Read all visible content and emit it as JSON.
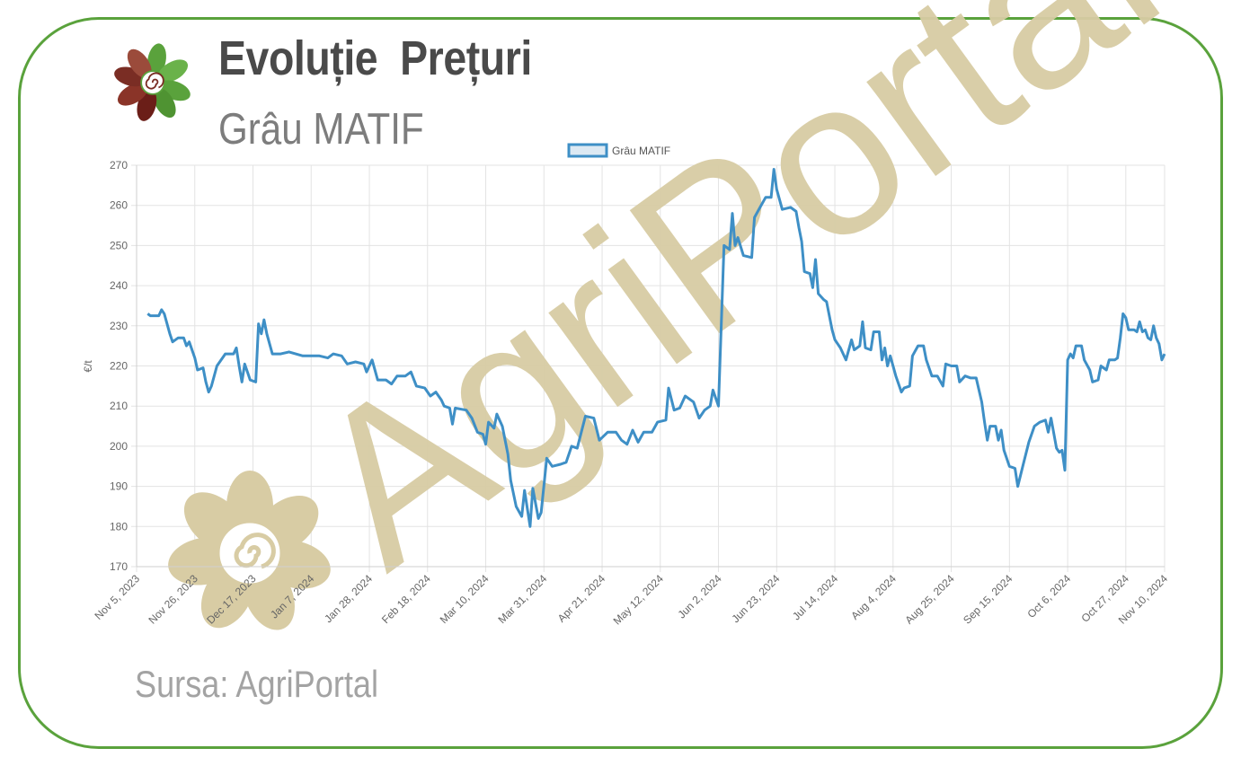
{
  "header": {
    "title": "Evoluție  Prețuri",
    "subtitle": "Grâu MATIF"
  },
  "footer": {
    "source": "Sursa: AgriPortal"
  },
  "watermark": {
    "text": "AgriPortal",
    "color": "#d8cca4"
  },
  "colors": {
    "frame": "#5aa23c",
    "line": "#3e8fc6",
    "grid": "#e3e3e3",
    "logo_green": "#5aa23c",
    "logo_brown": "#7a2d24"
  },
  "chart_data": {
    "type": "line",
    "title": "",
    "xlabel": "",
    "ylabel": "€/t",
    "ylim": [
      170,
      270
    ],
    "yticks": [
      170,
      180,
      190,
      200,
      210,
      220,
      230,
      240,
      250,
      260,
      270
    ],
    "xlim": [
      "2023-11-05",
      "2024-11-10"
    ],
    "xtick_labels": [
      "Nov 5, 2023",
      "Nov 26, 2023",
      "Dec 17, 2023",
      "Jan 7, 2024",
      "Jan 28, 2024",
      "Feb 18, 2024",
      "Mar 10, 2024",
      "Mar 31, 2024",
      "Apr 21, 2024",
      "May 12, 2024",
      "Jun 2, 2024",
      "Jun 23, 2024",
      "Jul 14, 2024",
      "Aug 4, 2024",
      "Aug 25, 2024",
      "Sep 15, 2024",
      "Oct 6, 2024",
      "Oct 27, 2024",
      "Nov 10, 2024"
    ],
    "grid": true,
    "legend": "top-center",
    "series": [
      {
        "name": "Grâu MATIF",
        "color": "#3e8fc6",
        "points": [
          [
            "2023-11-09",
            233
          ],
          [
            "2023-11-10",
            232.5
          ],
          [
            "2023-11-13",
            232.5
          ],
          [
            "2023-11-14",
            234
          ],
          [
            "2023-11-15",
            233
          ],
          [
            "2023-11-17",
            228
          ],
          [
            "2023-11-18",
            226
          ],
          [
            "2023-11-20",
            227
          ],
          [
            "2023-11-22",
            227
          ],
          [
            "2023-11-23",
            225
          ],
          [
            "2023-11-24",
            226
          ],
          [
            "2023-11-26",
            222
          ],
          [
            "2023-11-27",
            219
          ],
          [
            "2023-11-29",
            219.5
          ],
          [
            "2023-11-30",
            216
          ],
          [
            "2023-12-01",
            213.5
          ],
          [
            "2023-12-02",
            215
          ],
          [
            "2023-12-04",
            220
          ],
          [
            "2023-12-07",
            223
          ],
          [
            "2023-12-10",
            223
          ],
          [
            "2023-12-11",
            224.5
          ],
          [
            "2023-12-12",
            220
          ],
          [
            "2023-12-13",
            216
          ],
          [
            "2023-12-14",
            220.5
          ],
          [
            "2023-12-16",
            216.5
          ],
          [
            "2023-12-18",
            216
          ],
          [
            "2023-12-19",
            230.5
          ],
          [
            "2023-12-20",
            228
          ],
          [
            "2023-12-21",
            231.5
          ],
          [
            "2023-12-22",
            228
          ],
          [
            "2023-12-24",
            223
          ],
          [
            "2023-12-27",
            223
          ],
          [
            "2023-12-30",
            223.5
          ],
          [
            "2024-01-04",
            222.5
          ],
          [
            "2024-01-10",
            222.5
          ],
          [
            "2024-01-13",
            222
          ],
          [
            "2024-01-15",
            223
          ],
          [
            "2024-01-18",
            222.5
          ],
          [
            "2024-01-20",
            220.5
          ],
          [
            "2024-01-23",
            221
          ],
          [
            "2024-01-26",
            220.5
          ],
          [
            "2024-01-27",
            218.5
          ],
          [
            "2024-01-29",
            221.5
          ],
          [
            "2024-01-31",
            216.5
          ],
          [
            "2024-02-03",
            216.5
          ],
          [
            "2024-02-05",
            215.5
          ],
          [
            "2024-02-07",
            217.5
          ],
          [
            "2024-02-10",
            217.5
          ],
          [
            "2024-02-12",
            218.5
          ],
          [
            "2024-02-14",
            215
          ],
          [
            "2024-02-17",
            214.5
          ],
          [
            "2024-02-19",
            212.5
          ],
          [
            "2024-02-21",
            213.5
          ],
          [
            "2024-02-23",
            211.5
          ],
          [
            "2024-02-24",
            210
          ],
          [
            "2024-02-26",
            209.5
          ],
          [
            "2024-02-27",
            205.5
          ],
          [
            "2024-02-28",
            209.5
          ],
          [
            "2024-03-03",
            209
          ],
          [
            "2024-03-05",
            207
          ],
          [
            "2024-03-07",
            203.5
          ],
          [
            "2024-03-09",
            203
          ],
          [
            "2024-03-10",
            200.5
          ],
          [
            "2024-03-11",
            206
          ],
          [
            "2024-03-13",
            204.5
          ],
          [
            "2024-03-14",
            208
          ],
          [
            "2024-03-16",
            205
          ],
          [
            "2024-03-18",
            198
          ],
          [
            "2024-03-19",
            191.5
          ],
          [
            "2024-03-21",
            185
          ],
          [
            "2024-03-23",
            182.5
          ],
          [
            "2024-03-24",
            189
          ],
          [
            "2024-03-26",
            180
          ],
          [
            "2024-03-27",
            189.5
          ],
          [
            "2024-03-29",
            182
          ],
          [
            "2024-03-30",
            183.5
          ],
          [
            "2024-04-01",
            197
          ],
          [
            "2024-04-03",
            195
          ],
          [
            "2024-04-06",
            195.5
          ],
          [
            "2024-04-08",
            196
          ],
          [
            "2024-04-10",
            200
          ],
          [
            "2024-04-12",
            199.5
          ],
          [
            "2024-04-15",
            207.5
          ],
          [
            "2024-04-18",
            207
          ],
          [
            "2024-04-20",
            201.5
          ],
          [
            "2024-04-23",
            203.5
          ],
          [
            "2024-04-26",
            203.5
          ],
          [
            "2024-04-28",
            201.5
          ],
          [
            "2024-04-30",
            200.5
          ],
          [
            "2024-05-02",
            204
          ],
          [
            "2024-05-04",
            201
          ],
          [
            "2024-05-06",
            203.5
          ],
          [
            "2024-05-09",
            203.5
          ],
          [
            "2024-05-11",
            206
          ],
          [
            "2024-05-14",
            206.5
          ],
          [
            "2024-05-15",
            214.5
          ],
          [
            "2024-05-17",
            209
          ],
          [
            "2024-05-19",
            209.5
          ],
          [
            "2024-05-21",
            212.5
          ],
          [
            "2024-05-24",
            211
          ],
          [
            "2024-05-26",
            207
          ],
          [
            "2024-05-28",
            209
          ],
          [
            "2024-05-30",
            210
          ],
          [
            "2024-05-31",
            214
          ],
          [
            "2024-06-02",
            210
          ],
          [
            "2024-06-04",
            250
          ],
          [
            "2024-06-06",
            249
          ],
          [
            "2024-06-07",
            258
          ],
          [
            "2024-06-08",
            250
          ],
          [
            "2024-06-09",
            252
          ],
          [
            "2024-06-11",
            247.5
          ],
          [
            "2024-06-14",
            247
          ],
          [
            "2024-06-15",
            257
          ],
          [
            "2024-06-17",
            259.5
          ],
          [
            "2024-06-19",
            262
          ],
          [
            "2024-06-21",
            262
          ],
          [
            "2024-06-22",
            269
          ],
          [
            "2024-06-23",
            264
          ],
          [
            "2024-06-25",
            259
          ],
          [
            "2024-06-28",
            259.5
          ],
          [
            "2024-06-30",
            258.5
          ],
          [
            "2024-07-01",
            254.5
          ],
          [
            "2024-07-02",
            251
          ],
          [
            "2024-07-03",
            243.5
          ],
          [
            "2024-07-05",
            243
          ],
          [
            "2024-07-06",
            239.5
          ],
          [
            "2024-07-07",
            246.5
          ],
          [
            "2024-07-08",
            238
          ],
          [
            "2024-07-10",
            236.5
          ],
          [
            "2024-07-11",
            236
          ],
          [
            "2024-07-13",
            229
          ],
          [
            "2024-07-14",
            226.5
          ],
          [
            "2024-07-16",
            224.5
          ],
          [
            "2024-07-18",
            221.5
          ],
          [
            "2024-07-20",
            226.5
          ],
          [
            "2024-07-21",
            224
          ],
          [
            "2024-07-23",
            225
          ],
          [
            "2024-07-24",
            231
          ],
          [
            "2024-07-25",
            224.5
          ],
          [
            "2024-07-27",
            224
          ],
          [
            "2024-07-28",
            228.5
          ],
          [
            "2024-07-30",
            228.5
          ],
          [
            "2024-07-31",
            221.5
          ],
          [
            "2024-08-01",
            224.5
          ],
          [
            "2024-08-02",
            220
          ],
          [
            "2024-08-03",
            222.5
          ],
          [
            "2024-08-05",
            217.5
          ],
          [
            "2024-08-07",
            213.5
          ],
          [
            "2024-08-08",
            214.5
          ],
          [
            "2024-08-10",
            215
          ],
          [
            "2024-08-11",
            222.5
          ],
          [
            "2024-08-13",
            225
          ],
          [
            "2024-08-15",
            225
          ],
          [
            "2024-08-16",
            221.5
          ],
          [
            "2024-08-18",
            217.5
          ],
          [
            "2024-08-20",
            217.5
          ],
          [
            "2024-08-22",
            215
          ],
          [
            "2024-08-23",
            220.5
          ],
          [
            "2024-08-25",
            220
          ],
          [
            "2024-08-27",
            220
          ],
          [
            "2024-08-28",
            216
          ],
          [
            "2024-08-30",
            217.5
          ],
          [
            "2024-09-01",
            217
          ],
          [
            "2024-09-03",
            217
          ],
          [
            "2024-09-05",
            211
          ],
          [
            "2024-09-06",
            206
          ],
          [
            "2024-09-07",
            201.5
          ],
          [
            "2024-09-08",
            205
          ],
          [
            "2024-09-10",
            205
          ],
          [
            "2024-09-11",
            201.5
          ],
          [
            "2024-09-12",
            204
          ],
          [
            "2024-09-13",
            199
          ],
          [
            "2024-09-15",
            195
          ],
          [
            "2024-09-17",
            194.5
          ],
          [
            "2024-09-18",
            190
          ],
          [
            "2024-09-20",
            195.5
          ],
          [
            "2024-09-22",
            201
          ],
          [
            "2024-09-24",
            205
          ],
          [
            "2024-09-26",
            206
          ],
          [
            "2024-09-28",
            206.5
          ],
          [
            "2024-09-29",
            203.5
          ],
          [
            "2024-09-30",
            207
          ],
          [
            "2024-10-02",
            199.5
          ],
          [
            "2024-10-03",
            198.5
          ],
          [
            "2024-10-04",
            199
          ],
          [
            "2024-10-05",
            194
          ],
          [
            "2024-10-06",
            221.5
          ],
          [
            "2024-10-07",
            223
          ],
          [
            "2024-10-08",
            222
          ],
          [
            "2024-10-09",
            225
          ],
          [
            "2024-10-11",
            225
          ],
          [
            "2024-10-12",
            221.5
          ],
          [
            "2024-10-14",
            219
          ],
          [
            "2024-10-15",
            216
          ],
          [
            "2024-10-17",
            216.5
          ],
          [
            "2024-10-18",
            220
          ],
          [
            "2024-10-20",
            219
          ],
          [
            "2024-10-21",
            221.5
          ],
          [
            "2024-10-23",
            221.5
          ],
          [
            "2024-10-24",
            222
          ],
          [
            "2024-10-25",
            227
          ],
          [
            "2024-10-26",
            233
          ],
          [
            "2024-10-27",
            232
          ],
          [
            "2024-10-28",
            229
          ],
          [
            "2024-10-30",
            229
          ],
          [
            "2024-10-31",
            228.5
          ],
          [
            "2024-11-01",
            231
          ],
          [
            "2024-11-02",
            228.5
          ],
          [
            "2024-11-03",
            229
          ],
          [
            "2024-11-04",
            227
          ],
          [
            "2024-11-05",
            226.5
          ],
          [
            "2024-11-06",
            230
          ],
          [
            "2024-11-07",
            227
          ],
          [
            "2024-11-08",
            225.5
          ],
          [
            "2024-11-09",
            221.5
          ],
          [
            "2024-11-10",
            223
          ]
        ]
      }
    ]
  }
}
